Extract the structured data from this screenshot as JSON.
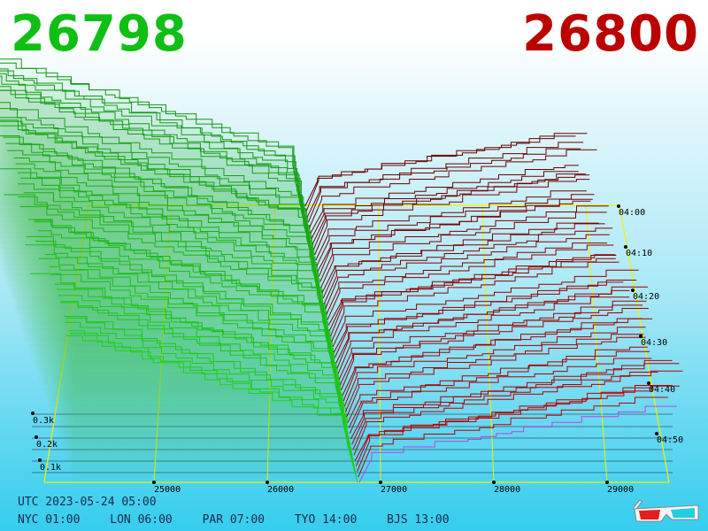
{
  "header": {
    "bid_price": "26798",
    "ask_price": "26800"
  },
  "footer": {
    "utc": "UTC 2023-05-24 05:00",
    "cities": [
      "NYC 01:00",
      "LON 06:00",
      "PAR 07:00",
      "TYO 14:00",
      "BJS 13:00"
    ]
  },
  "colors": {
    "bid": "#0fbf14",
    "ask": "#bb0000",
    "latest_ask": "#c040e0",
    "frame": "#f4f000",
    "background_top": "#ffffff",
    "background_bottom": "#35cdee"
  },
  "icons": [
    "3d-glasses-icon"
  ],
  "chart_data": {
    "type": "area",
    "title": "",
    "xlabel": "",
    "ylabel": "",
    "x_ticks": [
      "25000",
      "26000",
      "27000",
      "28000",
      "29000"
    ],
    "xlim": [
      24000,
      29500
    ],
    "volume_ticks": [
      "0.1k",
      "0.2k",
      "0.3k"
    ],
    "time_ticks": [
      "04:00",
      "04:10",
      "04:20",
      "04:30",
      "04:40",
      "04:50"
    ],
    "series": [
      {
        "name": "bid",
        "color": "#0fbf14",
        "x_range": [
          24000,
          26798
        ],
        "snapshots": 52
      },
      {
        "name": "ask",
        "color": "#bb0000",
        "x_range": [
          26800,
          29500
        ],
        "snapshots": 52
      }
    ]
  }
}
